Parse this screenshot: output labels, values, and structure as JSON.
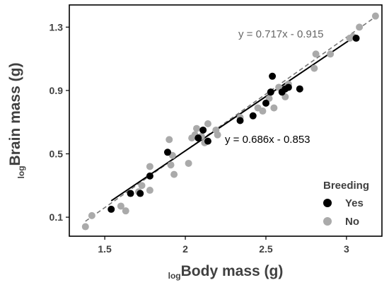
{
  "chart_data": {
    "type": "scatter",
    "xlabel_sub": "log",
    "xlabel_main": "Body mass (g)",
    "ylabel_sub": "log",
    "ylabel_main": "Brain mass (g)",
    "xlim": [
      1.28,
      3.22
    ],
    "ylim": [
      -0.02,
      1.44
    ],
    "x_ticks": [
      1.5,
      2,
      2.5,
      3
    ],
    "x_tick_labels": [
      "1.5",
      "2",
      "2.5",
      "3"
    ],
    "y_ticks": [
      0.1,
      0.5,
      0.9,
      1.3
    ],
    "y_tick_labels": [
      "0.1",
      "0.5",
      "0.9",
      "1.3"
    ],
    "grid": false,
    "legend": {
      "title": "Breeding",
      "placement": "bottom-right",
      "entries": [
        {
          "label": "Yes",
          "color": "#000000"
        },
        {
          "label": "No",
          "color": "#aaaaaa"
        }
      ]
    },
    "series": [
      {
        "name": "Yes",
        "color": "#000000",
        "points": [
          [
            1.54,
            0.15
          ],
          [
            1.66,
            0.25
          ],
          [
            1.72,
            0.25
          ],
          [
            1.78,
            0.36
          ],
          [
            1.89,
            0.51
          ],
          [
            2.08,
            0.6
          ],
          [
            2.11,
            0.65
          ],
          [
            2.14,
            0.58
          ],
          [
            2.34,
            0.71
          ],
          [
            2.42,
            0.74
          ],
          [
            2.5,
            0.82
          ],
          [
            2.53,
            0.89
          ],
          [
            2.54,
            0.99
          ],
          [
            2.6,
            0.89
          ],
          [
            2.62,
            0.91
          ],
          [
            2.64,
            0.92
          ],
          [
            2.71,
            0.91
          ],
          [
            3.06,
            1.23
          ]
        ],
        "fit": {
          "label": "y = 0.686x - 0.853",
          "slope": 0.686,
          "intercept": -0.853,
          "x_range": [
            1.54,
            3.06
          ],
          "line_style": "solid"
        }
      },
      {
        "name": "No",
        "color": "#aaaaaa",
        "points": [
          [
            1.38,
            0.04
          ],
          [
            1.42,
            0.11
          ],
          [
            1.6,
            0.17
          ],
          [
            1.63,
            0.14
          ],
          [
            1.71,
            0.26
          ],
          [
            1.73,
            0.3
          ],
          [
            1.78,
            0.27
          ],
          [
            1.78,
            0.42
          ],
          [
            1.9,
            0.59
          ],
          [
            1.91,
            0.43
          ],
          [
            1.92,
            0.49
          ],
          [
            1.93,
            0.37
          ],
          [
            2.02,
            0.44
          ],
          [
            2.04,
            0.6
          ],
          [
            2.06,
            0.62
          ],
          [
            2.07,
            0.66
          ],
          [
            2.1,
            0.61
          ],
          [
            2.12,
            0.57
          ],
          [
            2.14,
            0.69
          ],
          [
            2.19,
            0.65
          ],
          [
            2.2,
            0.62
          ],
          [
            2.34,
            0.73
          ],
          [
            2.45,
            0.79
          ],
          [
            2.48,
            0.77
          ],
          [
            2.52,
            0.85
          ],
          [
            2.55,
            0.79
          ],
          [
            2.58,
            0.92
          ],
          [
            2.62,
            0.86
          ],
          [
            2.64,
            0.94
          ],
          [
            2.8,
            1.04
          ],
          [
            2.81,
            1.13
          ],
          [
            2.9,
            1.13
          ],
          [
            3.02,
            1.23
          ],
          [
            3.04,
            1.24
          ],
          [
            3.08,
            1.3
          ],
          [
            3.18,
            1.37
          ]
        ],
        "fit": {
          "label": "y = 0.717x - 0.915",
          "slope": 0.717,
          "intercept": -0.915,
          "x_range": [
            1.38,
            3.18
          ],
          "line_style": "dashed"
        }
      }
    ]
  }
}
